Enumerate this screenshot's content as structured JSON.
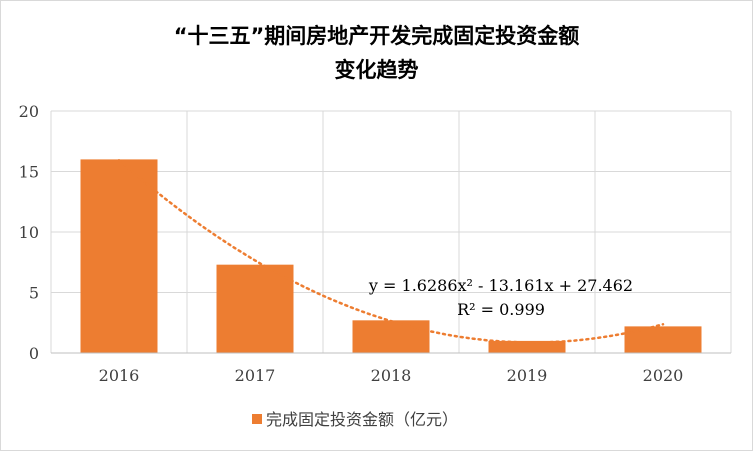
{
  "chart_data": {
    "type": "bar",
    "title_line1": "“十三五”期间房地产开发完成固定投资金额",
    "title_line2": "变化趋势",
    "categories": [
      "2016",
      "2017",
      "2018",
      "2019",
      "2020"
    ],
    "series": [
      {
        "name": "完成固定投资金额（亿元）",
        "values": [
          16.0,
          7.3,
          2.7,
          1.0,
          2.2
        ]
      }
    ],
    "trendline": {
      "type": "polynomial",
      "order": 2,
      "equation": "y = 1.6286x² - 13.161x + 27.462",
      "r_squared": "R² = 0.999",
      "coefficients": [
        1.6286,
        -13.161,
        27.462
      ]
    },
    "ylim": [
      0,
      20
    ],
    "yticks": [
      0,
      5,
      10,
      15,
      20
    ],
    "xlabel": "",
    "ylabel": "",
    "grid": true,
    "legend": "bottom",
    "colors": {
      "bar": "#ED7D31",
      "trendline": "#ED7D31",
      "grid": "#d9d9d9"
    }
  }
}
